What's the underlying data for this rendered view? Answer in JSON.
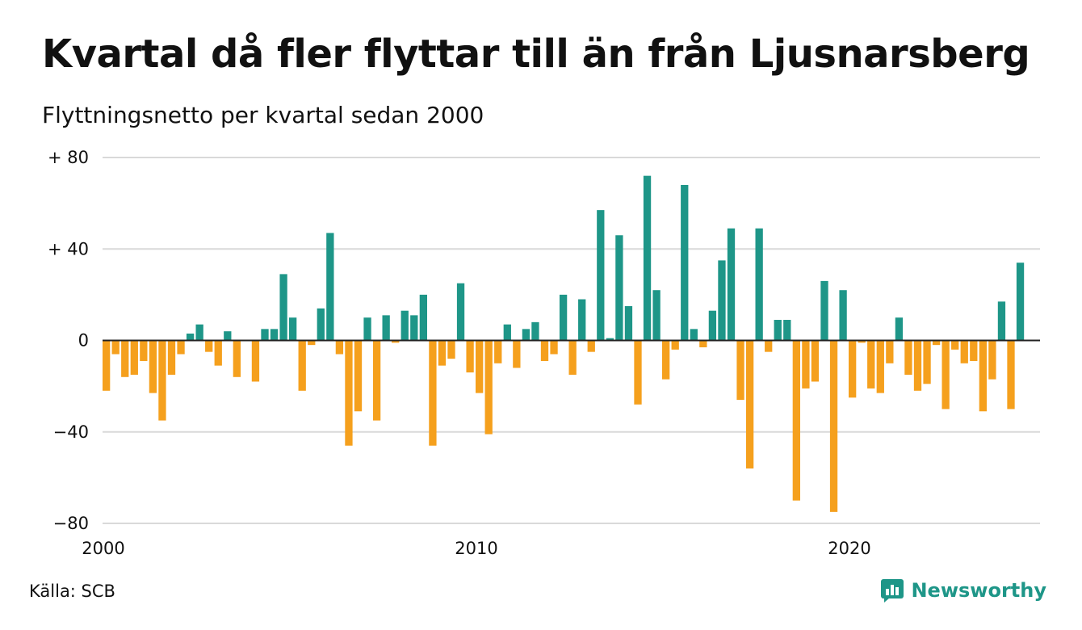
{
  "chart_data": {
    "type": "bar",
    "title": "Kvartal då fler flyttar till än från Ljusnarsberg",
    "subtitle": "Flyttningsnetto per kvartal sedan 2000",
    "start_year": 2000,
    "ylim": [
      -80,
      80
    ],
    "yticks": [
      80,
      40,
      0,
      -40,
      -80
    ],
    "ytick_labels": [
      "+ 80",
      "+ 40",
      "0",
      "−40",
      "−80"
    ],
    "xtick_years": [
      2000,
      2010,
      2020
    ],
    "xtick_labels": [
      "2000",
      "2010",
      "2020"
    ],
    "grid": true,
    "colors": {
      "positive": "#1e9688",
      "negative": "#f5a01d",
      "grid": "#d9d9d9",
      "zero_line": "#222222"
    },
    "values": [
      -22,
      -6,
      -16,
      -15,
      -9,
      -23,
      -35,
      -15,
      -6,
      3,
      7,
      -5,
      -11,
      4,
      -16,
      0,
      -18,
      5,
      5,
      29,
      10,
      -22,
      -2,
      14,
      47,
      -6,
      -46,
      -31,
      10,
      -35,
      11,
      -1,
      13,
      11,
      20,
      -46,
      -11,
      -8,
      25,
      -14,
      -23,
      -41,
      -10,
      7,
      -12,
      5,
      8,
      -9,
      -6,
      20,
      -15,
      18,
      -5,
      57,
      1,
      46,
      15,
      -28,
      72,
      22,
      -17,
      -4,
      68,
      5,
      -3,
      13,
      35,
      49,
      -26,
      -56,
      49,
      -5,
      9,
      9,
      -70,
      -21,
      -18,
      26,
      -75,
      22,
      -25,
      -1,
      -21,
      -23,
      -10,
      10,
      -15,
      -22,
      -19,
      -2,
      -30,
      -4,
      -10,
      -9,
      -31,
      -17,
      17,
      -30,
      34
    ]
  },
  "footer": {
    "source": "Källa: SCB"
  },
  "brand": {
    "name": "Newsworthy",
    "color": "#1e9688"
  }
}
